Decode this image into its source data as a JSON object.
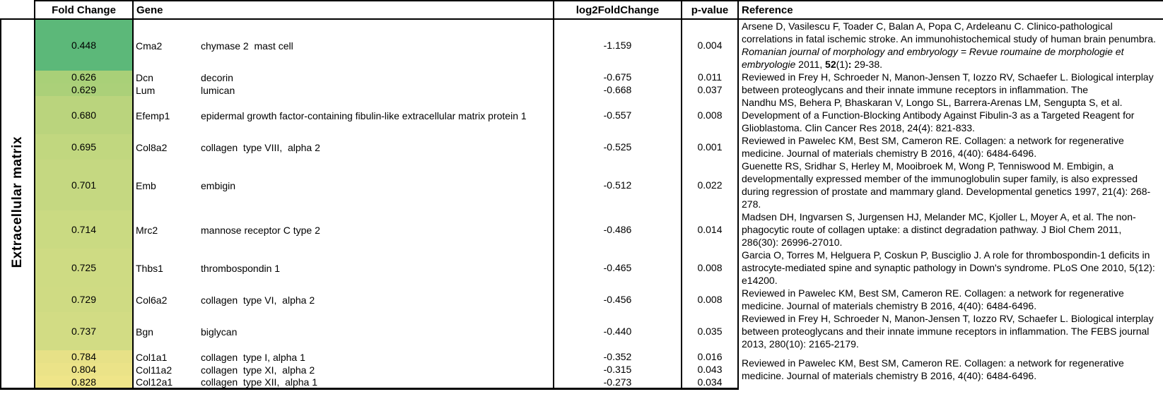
{
  "header": {
    "fold_change": "Fold Change",
    "gene": "Gene",
    "log2fc": "log2FoldChange",
    "pvalue": "p-value",
    "reference": "Reference"
  },
  "category_label": "Extracellular matrix",
  "rows": [
    {
      "fold": "0.448",
      "color": "#5cb879",
      "symbol": "Cma2",
      "desc": "chymase 2  mast cell",
      "log2fc": "-1.159",
      "pvalue": "0.004"
    },
    {
      "fold": "0.626",
      "color": "#a9d078",
      "symbol": "Dcn",
      "desc": "decorin",
      "log2fc": "-0.675",
      "pvalue": "0.011"
    },
    {
      "fold": "0.629",
      "color": "#abd079",
      "symbol": "Lum",
      "desc": "lumican",
      "log2fc": "-0.668",
      "pvalue": "0.037"
    },
    {
      "fold": "0.680",
      "color": "#bad47d",
      "symbol": "Efemp1",
      "desc": "epidermal growth factor-containing fibulin-like extracellular matrix protein 1",
      "log2fc": "-0.557",
      "pvalue": "0.008"
    },
    {
      "fold": "0.695",
      "color": "#c1d77f",
      "symbol": "Col8a2",
      "desc": "collagen  type VIII,  alpha 2",
      "log2fc": "-0.525",
      "pvalue": "0.001"
    },
    {
      "fold": "0.701",
      "color": "#c5d881",
      "symbol": "Emb",
      "desc": "embigin",
      "log2fc": "-0.512",
      "pvalue": "0.022"
    },
    {
      "fold": "0.714",
      "color": "#cada82",
      "symbol": "Mrc2",
      "desc": "mannose receptor C type 2",
      "log2fc": "-0.486",
      "pvalue": "0.014"
    },
    {
      "fold": "0.725",
      "color": "#cedb83",
      "symbol": "Thbs1",
      "desc": "thrombospondin 1",
      "log2fc": "-0.465",
      "pvalue": "0.008"
    },
    {
      "fold": "0.729",
      "color": "#cfdb83",
      "symbol": "Col6a2",
      "desc": "collagen  type VI,  alpha 2",
      "log2fc": "-0.456",
      "pvalue": "0.008"
    },
    {
      "fold": "0.737",
      "color": "#d2dc84",
      "symbol": "Bgn",
      "desc": "biglycan",
      "log2fc": "-0.440",
      "pvalue": "0.035"
    },
    {
      "fold": "0.784",
      "color": "#e7e187",
      "symbol": "Col1a1",
      "desc": "collagen  type I, alpha 1",
      "log2fc": "-0.352",
      "pvalue": "0.016"
    },
    {
      "fold": "0.804",
      "color": "#ebe388",
      "symbol": "Col11a2",
      "desc": "collagen  type XI,  alpha 2",
      "log2fc": "-0.315",
      "pvalue": "0.043"
    },
    {
      "fold": "0.828",
      "color": "#efe589",
      "symbol": "Col12a1",
      "desc": "collagen  type XII,  alpha 1",
      "log2fc": "-0.273",
      "pvalue": "0.034"
    }
  ],
  "refs": [
    [
      {
        "t": "Arsene D, Vasilescu F, Toader C, Balan A, Popa C, Ardeleanu C. Clinico-pathological correlations in fatal ischemic stroke. An immunohistochemical study of human brain penumbra. "
      },
      {
        "t": "Romanian journal of morphology and embryology = Revue roumaine de morphologie et embryologie",
        "i": 1
      },
      {
        "t": " 2011, "
      },
      {
        "t": "52",
        "b": 1
      },
      {
        "t": "(1)"
      },
      {
        "t": ":",
        "b": 1
      },
      {
        "t": " 29-38."
      }
    ],
    [
      {
        "t": "Reviewed in Frey H, Schroeder N, Manon-Jensen T, Iozzo RV, Schaefer L. Biological interplay between proteoglycans and their innate immune receptors in inflammation. The"
      }
    ],
    [
      {
        "t": "Nandhu MS, Behera P, Bhaskaran V, Longo SL, Barrera-Arenas LM, Sengupta S, et al. Development of a Function-Blocking Antibody Against Fibulin-3 as a Targeted Reagent for Glioblastoma. Clin Cancer Res 2018, 24(4): 821-833."
      }
    ],
    [
      {
        "t": "Reviewed in Pawelec KM, Best SM, Cameron RE. Collagen: a network for regenerative medicine. Journal of materials chemistry B 2016, 4(40): 6484-6496."
      }
    ],
    [
      {
        "t": "Guenette RS, Sridhar S, Herley M, Mooibroek M, Wong P, Tenniswood M. Embigin, a developmentally expressed member of the immunoglobulin super family, is also expressed during regression of prostate and mammary gland. Developmental genetics 1997, 21(4): 268-278."
      }
    ],
    [
      {
        "t": "Madsen DH, Ingvarsen S, Jurgensen HJ, Melander MC, Kjoller L, Moyer A, et al. The non-phagocytic route of collagen uptake: a distinct degradation pathway. J Biol Chem 2011, 286(30): 26996-27010."
      }
    ],
    [
      {
        "t": "Garcia O, Torres M, Helguera P, Coskun P, Busciglio J. A role for thrombospondin-1 deficits in astrocyte-mediated spine and synaptic pathology in Down's syndrome. PLoS One 2010, 5(12): e14200."
      }
    ],
    [
      {
        "t": "Reviewed in Pawelec KM, Best SM, Cameron RE. Collagen: a network for regenerative medicine. Journal of materials chemistry B 2016, 4(40): 6484-6496."
      }
    ],
    [
      {
        "t": "Reviewed in Frey H, Schroeder N, Manon-Jensen T, Iozzo RV, Schaefer L. Biological interplay between proteoglycans and their innate immune receptors in inflammation. The FEBS journal 2013, 280(10): 2165-2179."
      }
    ],
    [
      {
        "t": "Reviewed in Pawelec KM, Best SM, Cameron RE. Collagen: a network for regenerative medicine. Journal of materials chemistry B 2016, 4(40): 6484-6496."
      }
    ]
  ]
}
